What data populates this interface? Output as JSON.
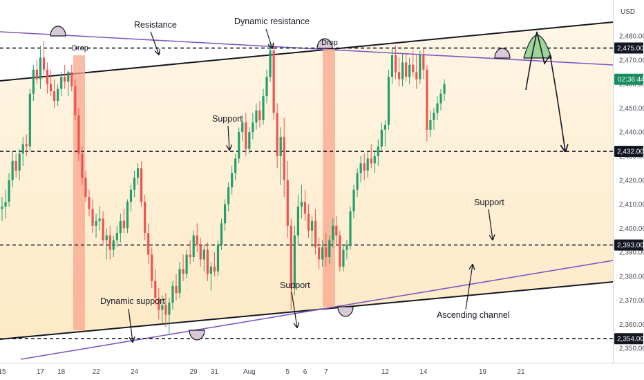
{
  "chart_data": {
    "type": "candlestick",
    "currency_label": "USD",
    "colors": {
      "up": "#22a06b",
      "down": "#ef5350",
      "channel_fill": "#fde4b8",
      "channel_line": "#131722",
      "dynamic_line": "#7e57c2",
      "drop_zone": "#f8a58c",
      "target_green": "#9ed39a",
      "pivot_fill": "#d8c8d8",
      "current_tag": "#178c5e"
    },
    "y_axis": {
      "ylim": [
        2344,
        2495
      ],
      "ticks": [
        "2,350.00",
        "2,360.00",
        "2,370.00",
        "2,380.00",
        "2,390.00",
        "2,400.00",
        "2,410.00",
        "2,420.00",
        "2,430.00",
        "2,440.00",
        "2,450.00",
        "2,460.00",
        "2,470.00",
        "2,480.00"
      ],
      "tick_values": [
        2350,
        2360,
        2370,
        2380,
        2390,
        2400,
        2410,
        2420,
        2430,
        2440,
        2450,
        2460,
        2470,
        2480
      ]
    },
    "x_axis": {
      "ticks": [
        {
          "label": "15",
          "idx": 0
        },
        {
          "label": "17",
          "idx": 11
        },
        {
          "label": "18",
          "idx": 17
        },
        {
          "label": "22",
          "idx": 27
        },
        {
          "label": "24",
          "idx": 38
        },
        {
          "label": "29",
          "idx": 55
        },
        {
          "label": "31",
          "idx": 61
        },
        {
          "label": "Aug",
          "idx": 71
        },
        {
          "label": "5",
          "idx": 82
        },
        {
          "label": "6",
          "idx": 87
        },
        {
          "label": "7",
          "idx": 93
        },
        {
          "label": "12",
          "idx": 110
        },
        {
          "label": "14",
          "idx": 121
        },
        {
          "label": "19",
          "idx": 138
        },
        {
          "label": "21",
          "idx": 149
        }
      ]
    },
    "horizontal_levels": [
      {
        "value": 2475,
        "label": "2,475.00"
      },
      {
        "value": 2432,
        "label": "2,432.00"
      },
      {
        "value": 2393,
        "label": "2,393.00"
      },
      {
        "value": 2354,
        "label": "2,354.00"
      }
    ],
    "current_price_tag": {
      "value": 2462,
      "label": "02:36:44"
    },
    "annotations": [
      "Resistance",
      "Dynamic resistance",
      "Drop",
      "Drop",
      "Support",
      "Support",
      "Support",
      "Dynamic support",
      "Ascending channel"
    ],
    "series": [
      {
        "o": 2408,
        "h": 2413,
        "l": 2403,
        "c": 2409
      },
      {
        "o": 2409,
        "h": 2416,
        "l": 2404,
        "c": 2411
      },
      {
        "o": 2411,
        "h": 2423,
        "l": 2409,
        "c": 2420
      },
      {
        "o": 2420,
        "h": 2432,
        "l": 2417,
        "c": 2428
      },
      {
        "o": 2428,
        "h": 2431,
        "l": 2421,
        "c": 2424
      },
      {
        "o": 2424,
        "h": 2433,
        "l": 2420,
        "c": 2431
      },
      {
        "o": 2431,
        "h": 2438,
        "l": 2426,
        "c": 2435
      },
      {
        "o": 2435,
        "h": 2439,
        "l": 2430,
        "c": 2434
      },
      {
        "o": 2434,
        "h": 2458,
        "l": 2432,
        "c": 2456
      },
      {
        "o": 2456,
        "h": 2468,
        "l": 2453,
        "c": 2466
      },
      {
        "o": 2466,
        "h": 2470,
        "l": 2460,
        "c": 2462
      },
      {
        "o": 2462,
        "h": 2476,
        "l": 2458,
        "c": 2471
      },
      {
        "o": 2471,
        "h": 2478,
        "l": 2464,
        "c": 2466
      },
      {
        "o": 2466,
        "h": 2469,
        "l": 2456,
        "c": 2460
      },
      {
        "o": 2460,
        "h": 2466,
        "l": 2455,
        "c": 2457
      },
      {
        "o": 2457,
        "h": 2462,
        "l": 2450,
        "c": 2453
      },
      {
        "o": 2453,
        "h": 2460,
        "l": 2451,
        "c": 2458
      },
      {
        "o": 2458,
        "h": 2465,
        "l": 2455,
        "c": 2463
      },
      {
        "o": 2463,
        "h": 2468,
        "l": 2458,
        "c": 2461
      },
      {
        "o": 2461,
        "h": 2466,
        "l": 2455,
        "c": 2465
      },
      {
        "o": 2465,
        "h": 2468,
        "l": 2457,
        "c": 2459
      },
      {
        "o": 2459,
        "h": 2462,
        "l": 2445,
        "c": 2447
      },
      {
        "o": 2447,
        "h": 2450,
        "l": 2428,
        "c": 2431
      },
      {
        "o": 2431,
        "h": 2434,
        "l": 2418,
        "c": 2421
      },
      {
        "o": 2421,
        "h": 2424,
        "l": 2411,
        "c": 2413
      },
      {
        "o": 2413,
        "h": 2416,
        "l": 2405,
        "c": 2408
      },
      {
        "o": 2408,
        "h": 2412,
        "l": 2398,
        "c": 2401
      },
      {
        "o": 2401,
        "h": 2406,
        "l": 2396,
        "c": 2403
      },
      {
        "o": 2403,
        "h": 2409,
        "l": 2399,
        "c": 2404
      },
      {
        "o": 2404,
        "h": 2407,
        "l": 2393,
        "c": 2395
      },
      {
        "o": 2395,
        "h": 2400,
        "l": 2387,
        "c": 2397
      },
      {
        "o": 2397,
        "h": 2401,
        "l": 2387,
        "c": 2391
      },
      {
        "o": 2391,
        "h": 2397,
        "l": 2388,
        "c": 2395
      },
      {
        "o": 2395,
        "h": 2401,
        "l": 2392,
        "c": 2398
      },
      {
        "o": 2398,
        "h": 2406,
        "l": 2394,
        "c": 2403
      },
      {
        "o": 2403,
        "h": 2408,
        "l": 2398,
        "c": 2400
      },
      {
        "o": 2400,
        "h": 2412,
        "l": 2398,
        "c": 2411
      },
      {
        "o": 2411,
        "h": 2418,
        "l": 2407,
        "c": 2416
      },
      {
        "o": 2416,
        "h": 2424,
        "l": 2413,
        "c": 2421
      },
      {
        "o": 2421,
        "h": 2427,
        "l": 2418,
        "c": 2425
      },
      {
        "o": 2425,
        "h": 2428,
        "l": 2409,
        "c": 2411
      },
      {
        "o": 2411,
        "h": 2414,
        "l": 2395,
        "c": 2398
      },
      {
        "o": 2398,
        "h": 2402,
        "l": 2385,
        "c": 2389
      },
      {
        "o": 2389,
        "h": 2392,
        "l": 2375,
        "c": 2378
      },
      {
        "o": 2378,
        "h": 2383,
        "l": 2368,
        "c": 2371
      },
      {
        "o": 2371,
        "h": 2375,
        "l": 2362,
        "c": 2366
      },
      {
        "o": 2366,
        "h": 2372,
        "l": 2360,
        "c": 2368
      },
      {
        "o": 2368,
        "h": 2373,
        "l": 2359,
        "c": 2364
      },
      {
        "o": 2364,
        "h": 2371,
        "l": 2356,
        "c": 2369
      },
      {
        "o": 2369,
        "h": 2378,
        "l": 2366,
        "c": 2376
      },
      {
        "o": 2376,
        "h": 2381,
        "l": 2370,
        "c": 2373
      },
      {
        "o": 2373,
        "h": 2386,
        "l": 2371,
        "c": 2383
      },
      {
        "o": 2383,
        "h": 2389,
        "l": 2378,
        "c": 2381
      },
      {
        "o": 2381,
        "h": 2391,
        "l": 2379,
        "c": 2389
      },
      {
        "o": 2389,
        "h": 2395,
        "l": 2385,
        "c": 2388
      },
      {
        "o": 2388,
        "h": 2399,
        "l": 2386,
        "c": 2397
      },
      {
        "o": 2397,
        "h": 2402,
        "l": 2390,
        "c": 2393
      },
      {
        "o": 2393,
        "h": 2396,
        "l": 2384,
        "c": 2387
      },
      {
        "o": 2387,
        "h": 2393,
        "l": 2382,
        "c": 2391
      },
      {
        "o": 2391,
        "h": 2394,
        "l": 2378,
        "c": 2381
      },
      {
        "o": 2381,
        "h": 2386,
        "l": 2374,
        "c": 2384
      },
      {
        "o": 2384,
        "h": 2390,
        "l": 2380,
        "c": 2382
      },
      {
        "o": 2382,
        "h": 2395,
        "l": 2380,
        "c": 2393
      },
      {
        "o": 2393,
        "h": 2404,
        "l": 2391,
        "c": 2402
      },
      {
        "o": 2402,
        "h": 2412,
        "l": 2399,
        "c": 2410
      },
      {
        "o": 2410,
        "h": 2419,
        "l": 2407,
        "c": 2417
      },
      {
        "o": 2417,
        "h": 2426,
        "l": 2414,
        "c": 2423
      },
      {
        "o": 2423,
        "h": 2431,
        "l": 2420,
        "c": 2429
      },
      {
        "o": 2429,
        "h": 2442,
        "l": 2427,
        "c": 2440
      },
      {
        "o": 2440,
        "h": 2447,
        "l": 2436,
        "c": 2444
      },
      {
        "o": 2444,
        "h": 2448,
        "l": 2430,
        "c": 2433
      },
      {
        "o": 2433,
        "h": 2442,
        "l": 2431,
        "c": 2440
      },
      {
        "o": 2440,
        "h": 2448,
        "l": 2437,
        "c": 2444
      },
      {
        "o": 2444,
        "h": 2452,
        "l": 2441,
        "c": 2449
      },
      {
        "o": 2449,
        "h": 2453,
        "l": 2442,
        "c": 2445
      },
      {
        "o": 2445,
        "h": 2458,
        "l": 2443,
        "c": 2455
      },
      {
        "o": 2455,
        "h": 2466,
        "l": 2452,
        "c": 2463
      },
      {
        "o": 2463,
        "h": 2477,
        "l": 2461,
        "c": 2474
      },
      {
        "o": 2474,
        "h": 2477,
        "l": 2445,
        "c": 2448
      },
      {
        "o": 2448,
        "h": 2452,
        "l": 2425,
        "c": 2430
      },
      {
        "o": 2430,
        "h": 2442,
        "l": 2418,
        "c": 2438
      },
      {
        "o": 2438,
        "h": 2446,
        "l": 2413,
        "c": 2420
      },
      {
        "o": 2420,
        "h": 2428,
        "l": 2396,
        "c": 2401
      },
      {
        "o": 2401,
        "h": 2404,
        "l": 2366,
        "c": 2375
      },
      {
        "o": 2375,
        "h": 2401,
        "l": 2372,
        "c": 2397
      },
      {
        "o": 2397,
        "h": 2414,
        "l": 2393,
        "c": 2409
      },
      {
        "o": 2409,
        "h": 2418,
        "l": 2404,
        "c": 2411
      },
      {
        "o": 2411,
        "h": 2416,
        "l": 2403,
        "c": 2406
      },
      {
        "o": 2406,
        "h": 2410,
        "l": 2396,
        "c": 2399
      },
      {
        "o": 2399,
        "h": 2405,
        "l": 2392,
        "c": 2403
      },
      {
        "o": 2403,
        "h": 2408,
        "l": 2389,
        "c": 2392
      },
      {
        "o": 2392,
        "h": 2396,
        "l": 2383,
        "c": 2387
      },
      {
        "o": 2387,
        "h": 2395,
        "l": 2384,
        "c": 2392
      },
      {
        "o": 2392,
        "h": 2398,
        "l": 2384,
        "c": 2388
      },
      {
        "o": 2388,
        "h": 2397,
        "l": 2385,
        "c": 2395
      },
      {
        "o": 2395,
        "h": 2404,
        "l": 2392,
        "c": 2401
      },
      {
        "o": 2401,
        "h": 2405,
        "l": 2393,
        "c": 2397
      },
      {
        "o": 2397,
        "h": 2399,
        "l": 2382,
        "c": 2384
      },
      {
        "o": 2384,
        "h": 2393,
        "l": 2382,
        "c": 2391
      },
      {
        "o": 2391,
        "h": 2395,
        "l": 2387,
        "c": 2393
      },
      {
        "o": 2393,
        "h": 2409,
        "l": 2391,
        "c": 2407
      },
      {
        "o": 2407,
        "h": 2418,
        "l": 2404,
        "c": 2416
      },
      {
        "o": 2416,
        "h": 2425,
        "l": 2413,
        "c": 2423
      },
      {
        "o": 2423,
        "h": 2430,
        "l": 2419,
        "c": 2427
      },
      {
        "o": 2427,
        "h": 2431,
        "l": 2420,
        "c": 2424
      },
      {
        "o": 2424,
        "h": 2432,
        "l": 2421,
        "c": 2429
      },
      {
        "o": 2429,
        "h": 2435,
        "l": 2425,
        "c": 2427
      },
      {
        "o": 2427,
        "h": 2432,
        "l": 2423,
        "c": 2430
      },
      {
        "o": 2430,
        "h": 2437,
        "l": 2426,
        "c": 2434
      },
      {
        "o": 2434,
        "h": 2444,
        "l": 2432,
        "c": 2441
      },
      {
        "o": 2441,
        "h": 2445,
        "l": 2434,
        "c": 2443
      },
      {
        "o": 2443,
        "h": 2466,
        "l": 2441,
        "c": 2463
      },
      {
        "o": 2463,
        "h": 2475,
        "l": 2460,
        "c": 2472
      },
      {
        "o": 2472,
        "h": 2476,
        "l": 2462,
        "c": 2465
      },
      {
        "o": 2465,
        "h": 2471,
        "l": 2459,
        "c": 2462
      },
      {
        "o": 2462,
        "h": 2473,
        "l": 2459,
        "c": 2469
      },
      {
        "o": 2469,
        "h": 2473,
        "l": 2461,
        "c": 2463
      },
      {
        "o": 2463,
        "h": 2471,
        "l": 2460,
        "c": 2468
      },
      {
        "o": 2468,
        "h": 2474,
        "l": 2463,
        "c": 2465
      },
      {
        "o": 2465,
        "h": 2472,
        "l": 2458,
        "c": 2462
      },
      {
        "o": 2462,
        "h": 2474,
        "l": 2460,
        "c": 2472
      },
      {
        "o": 2472,
        "h": 2475,
        "l": 2462,
        "c": 2466
      },
      {
        "o": 2466,
        "h": 2468,
        "l": 2436,
        "c": 2441
      },
      {
        "o": 2441,
        "h": 2449,
        "l": 2438,
        "c": 2445
      },
      {
        "o": 2445,
        "h": 2450,
        "l": 2441,
        "c": 2448
      },
      {
        "o": 2448,
        "h": 2455,
        "l": 2445,
        "c": 2452
      },
      {
        "o": 2452,
        "h": 2458,
        "l": 2449,
        "c": 2456
      },
      {
        "o": 2456,
        "h": 2462,
        "l": 2453,
        "c": 2460
      }
    ]
  }
}
